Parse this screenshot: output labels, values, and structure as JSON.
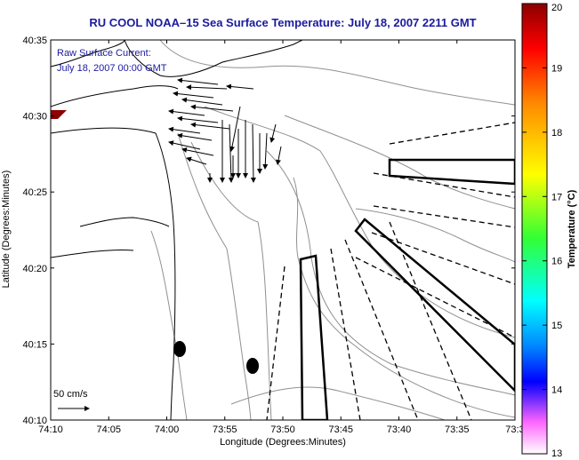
{
  "title": "RU COOL  NOAA–15  Sea Surface Temperature:  July 18, 2007 2211 GMT",
  "current_label": {
    "line1": "Raw Surface Current:",
    "line2": "July 18, 2007 00:00 GMT"
  },
  "scale_label": "50 cm/s",
  "xaxis": {
    "label": "Longitude (Degrees:Minutes)",
    "ticks": [
      "74:10",
      "74:05",
      "74:00",
      "73:55",
      "73:50",
      "73:45",
      "73:40",
      "73:35",
      "73:3"
    ]
  },
  "yaxis": {
    "label": "Latitude (Degrees:Minutes)",
    "ticks": [
      "40:35",
      "40:30",
      "40:25",
      "40:20",
      "40:15",
      "40:10"
    ]
  },
  "colorbar": {
    "label": "Temperature (°C)",
    "ticks": [
      "20",
      "19",
      "18",
      "17",
      "16",
      "15",
      "14",
      "13"
    ],
    "colors": [
      "#8b0000",
      "#ff0000",
      "#ff8800",
      "#ffff00",
      "#33ff33",
      "#00ffff",
      "#0088ff",
      "#0000ff",
      "#ff66ff",
      "#ffffff"
    ]
  }
}
